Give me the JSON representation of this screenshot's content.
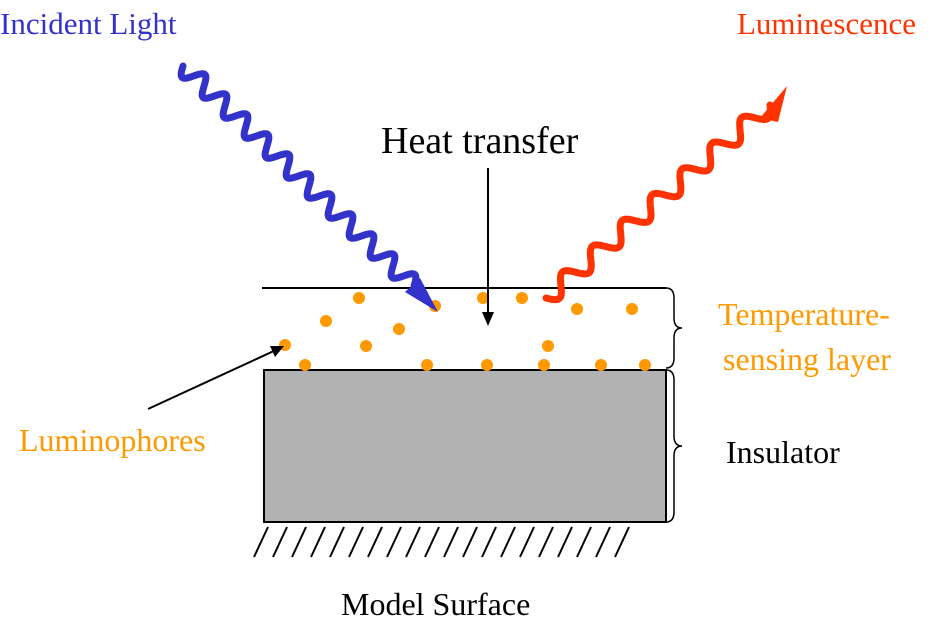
{
  "labels": {
    "incident_light": "Incident Light",
    "luminescence": "Luminescence",
    "heat_transfer": "Heat transfer",
    "temperature_line1": "Temperature-",
    "temperature_line2": "sensing layer",
    "luminophores": "Luminophores",
    "insulator": "Insulator",
    "model_surface": "Model Surface"
  },
  "colors": {
    "incident": "#3333cc",
    "luminescence": "#ff3300",
    "luminophore": "#ff9900",
    "insulator_fill": "#b2b2b2",
    "line": "#000000"
  }
}
